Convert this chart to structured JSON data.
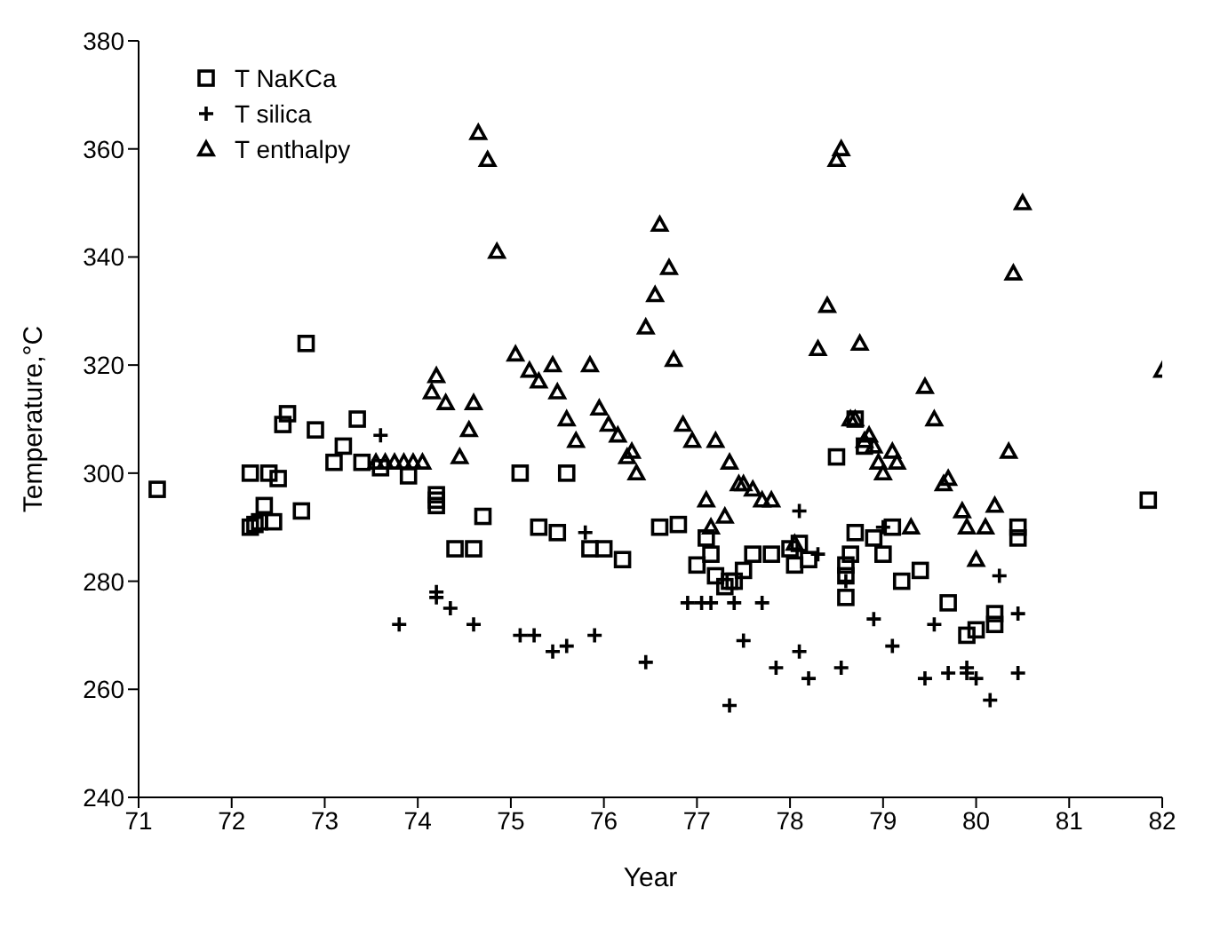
{
  "chart_data": {
    "type": "scatter",
    "xlabel": "Year",
    "ylabel": "Temperature,°C",
    "xlim": [
      71,
      82
    ],
    "xticks": [
      71,
      72,
      73,
      74,
      75,
      76,
      77,
      78,
      79,
      80,
      81,
      82
    ],
    "ylim": [
      240,
      380
    ],
    "yticks": [
      240,
      260,
      280,
      300,
      320,
      340,
      360,
      380
    ],
    "grid": false,
    "legend": "top left",
    "series": [
      {
        "name": "T NaKCa",
        "color": "#000000",
        "marker": "square",
        "x": [
          71.2,
          72.2,
          72.25,
          72.3,
          72.35,
          72.2,
          72.4,
          72.45,
          72.5,
          72.55,
          72.6,
          72.75,
          72.8,
          72.9,
          73.1,
          73.2,
          73.35,
          73.4,
          73.6,
          73.9,
          74.2,
          74.2,
          74.2,
          74.4,
          74.6,
          74.7,
          75.1,
          75.3,
          75.5,
          75.6,
          75.85,
          76.0,
          76.2,
          76.6,
          76.8,
          77.0,
          77.1,
          77.15,
          77.2,
          77.3,
          77.35,
          77.4,
          77.5,
          77.6,
          77.8,
          78.0,
          78.05,
          78.1,
          78.2,
          78.5,
          78.6,
          78.6,
          78.6,
          78.65,
          78.7,
          78.7,
          78.8,
          78.9,
          79.0,
          79.1,
          79.2,
          79.4,
          79.7,
          79.9,
          80.0,
          80.2,
          80.2,
          80.45,
          80.45,
          81.85
        ],
        "values": [
          297,
          290,
          290.5,
          291,
          294,
          300,
          300,
          291,
          299,
          309,
          311,
          293,
          324,
          308,
          302,
          305,
          310,
          302,
          301,
          299.5,
          296,
          295,
          294,
          286,
          286,
          292,
          300,
          290,
          289,
          300,
          286,
          286,
          284,
          290,
          290.5,
          283,
          288,
          285,
          281,
          279,
          280,
          280,
          282,
          285,
          285,
          286,
          283,
          287,
          284,
          303,
          277,
          281,
          283,
          285,
          289,
          310,
          305,
          288,
          285,
          290,
          280,
          282,
          276,
          270,
          271,
          272,
          274,
          288,
          290,
          295
        ]
      },
      {
        "name": "T silica",
        "color": "#000000",
        "marker": "cross",
        "x": [
          73.6,
          73.8,
          74.2,
          74.2,
          74.35,
          74.6,
          75.1,
          75.25,
          75.45,
          75.6,
          75.8,
          75.9,
          76.45,
          76.9,
          77.05,
          77.15,
          77.35,
          77.4,
          77.5,
          77.7,
          77.85,
          78.1,
          78.1,
          78.2,
          78.3,
          78.55,
          78.6,
          78.9,
          79.0,
          79.1,
          79.45,
          79.55,
          79.7,
          79.9,
          79.9,
          80.0,
          80.15,
          80.25,
          80.45,
          80.45
        ],
        "values": [
          307,
          272,
          278,
          277,
          275,
          272,
          270,
          270,
          267,
          268,
          289,
          270,
          265,
          276,
          276,
          276,
          257,
          276,
          269,
          276,
          264,
          293,
          267,
          262,
          285,
          264,
          280,
          273,
          290,
          268,
          262,
          272,
          263,
          263,
          264,
          262,
          258,
          281,
          274,
          263
        ]
      },
      {
        "name": "T enthalpy",
        "color": "#000000",
        "marker": "triangle",
        "x": [
          73.55,
          73.65,
          73.75,
          73.85,
          73.95,
          74.05,
          74.15,
          74.2,
          74.3,
          74.45,
          74.55,
          74.6,
          74.65,
          74.75,
          74.85,
          75.05,
          75.2,
          75.3,
          75.45,
          75.5,
          75.6,
          75.7,
          75.85,
          75.95,
          76.05,
          76.15,
          76.25,
          76.3,
          76.35,
          76.45,
          76.55,
          76.6,
          76.7,
          76.75,
          76.85,
          76.95,
          77.1,
          77.15,
          77.2,
          77.3,
          77.35,
          77.45,
          77.5,
          77.6,
          77.7,
          77.8,
          78.05,
          78.3,
          78.4,
          78.5,
          78.55,
          78.65,
          78.7,
          78.75,
          78.8,
          78.85,
          78.9,
          78.95,
          79.0,
          79.1,
          79.15,
          79.3,
          79.45,
          79.55,
          79.65,
          79.7,
          79.85,
          79.9,
          80.0,
          80.1,
          80.2,
          80.35,
          80.4,
          80.5,
          82.0
        ],
        "values": [
          302,
          302,
          302,
          302,
          302,
          302,
          315,
          318,
          313,
          303,
          308,
          313,
          363,
          358,
          341,
          322,
          319,
          317,
          320,
          315,
          310,
          306,
          320,
          312,
          309,
          307,
          303,
          304,
          300,
          327,
          333,
          346,
          338,
          321,
          309,
          306,
          295,
          290,
          306,
          292,
          302,
          298,
          298,
          297,
          295,
          295,
          287,
          323,
          331,
          358,
          360,
          310,
          310,
          324,
          306,
          307,
          305,
          302,
          300,
          304,
          302,
          290,
          316,
          310,
          298,
          299,
          293,
          290,
          284,
          290,
          294,
          304,
          337,
          350,
          319
        ]
      }
    ]
  }
}
